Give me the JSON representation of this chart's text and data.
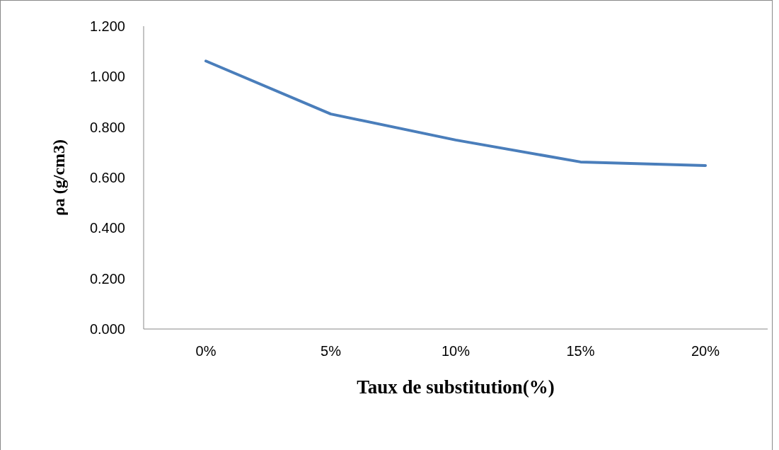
{
  "chart_data": {
    "type": "line",
    "xlabel": "Taux de substitution(%)",
    "ylabel": "ρa (g/cm3)",
    "categories": [
      "0%",
      "5%",
      "10%",
      "15%",
      "20%"
    ],
    "series": [
      {
        "color": "#4a7ebb",
        "values": [
          1.062,
          0.852,
          0.749,
          0.662,
          0.648
        ]
      }
    ],
    "ylim": [
      0,
      1.2
    ],
    "yticks": [
      {
        "value": 0,
        "label": "0.000"
      },
      {
        "value": 0.2,
        "label": "0.200"
      },
      {
        "value": 0.4,
        "label": "0.400"
      },
      {
        "value": 0.6,
        "label": "0.600"
      },
      {
        "value": 0.8,
        "label": "0.800"
      },
      {
        "value": 1,
        "label": "1.000"
      },
      {
        "value": 1.2,
        "label": "1.200"
      }
    ]
  }
}
